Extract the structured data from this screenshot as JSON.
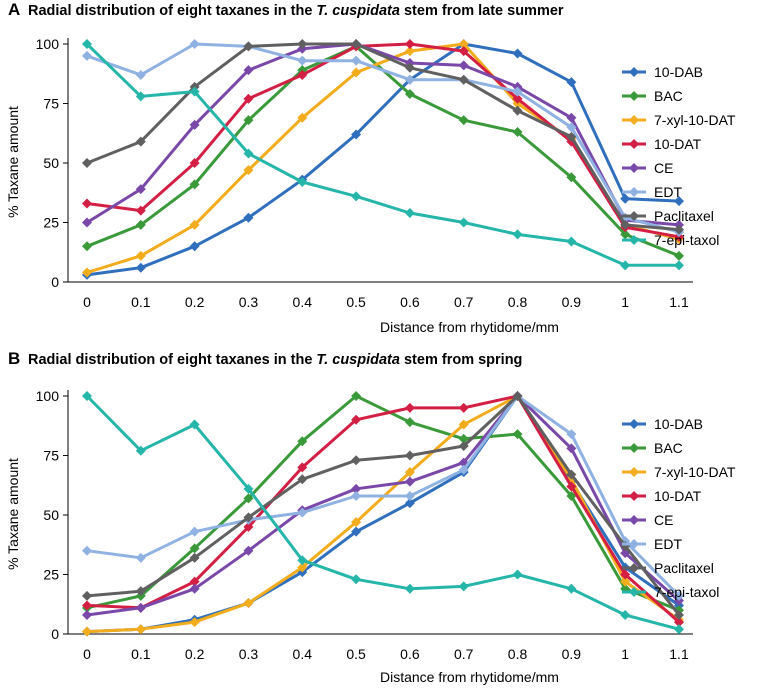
{
  "chart_data": [
    {
      "type": "line",
      "panel_label": "A",
      "title_parts": [
        "Radial distribution of eight taxanes in the ",
        "T. cuspidata",
        " stem from late summer"
      ],
      "xlabel": "Distance from rhytidome/mm",
      "ylabel": "% Taxane amount",
      "x": [
        0,
        0.1,
        0.2,
        0.3,
        0.4,
        0.5,
        0.6,
        0.7,
        0.8,
        0.9,
        1,
        1.1
      ],
      "x_ticks": [
        "0",
        "0.1",
        "0.2",
        "0.3",
        "0.4",
        "0.5",
        "0.6",
        "0.7",
        "0.8",
        "0.9",
        "1",
        "1.1"
      ],
      "ylim": [
        0,
        100
      ],
      "y_ticks": [
        "0",
        "25",
        "50",
        "75",
        "100"
      ],
      "legend_position": "right",
      "series": [
        {
          "name": "10-DAB",
          "color": "#2f6fbd",
          "values": [
            3,
            6,
            15,
            27,
            43,
            62,
            85,
            100,
            96,
            84,
            35,
            34
          ]
        },
        {
          "name": "BAC",
          "color": "#3a9a3a",
          "values": [
            15,
            24,
            41,
            68,
            89,
            99,
            79,
            68,
            63,
            44,
            20,
            11
          ]
        },
        {
          "name": "7-xyl-10-DAT",
          "color": "#f2ac1c",
          "values": [
            4,
            11,
            24,
            47,
            69,
            88,
            97,
            100,
            75,
            60,
            24,
            18
          ]
        },
        {
          "name": "10-DAT",
          "color": "#d41f45",
          "values": [
            33,
            30,
            50,
            77,
            87,
            99,
            100,
            97,
            77,
            59,
            23,
            19
          ]
        },
        {
          "name": "CE",
          "color": "#7a48a9",
          "values": [
            25,
            39,
            66,
            89,
            98,
            100,
            92,
            91,
            82,
            69,
            26,
            24
          ]
        },
        {
          "name": "EDT",
          "color": "#8fb2e3",
          "values": [
            95,
            87,
            100,
            99,
            93,
            93,
            85,
            85,
            80,
            65,
            27,
            21
          ]
        },
        {
          "name": "Paclitaxel",
          "color": "#606060",
          "values": [
            50,
            59,
            82,
            99,
            100,
            100,
            90,
            85,
            72,
            61,
            24,
            22
          ]
        },
        {
          "name": "7-epi-taxol",
          "color": "#26b5a9",
          "values": [
            100,
            78,
            80,
            54,
            42,
            36,
            29,
            25,
            20,
            17,
            7,
            7
          ]
        }
      ]
    },
    {
      "type": "line",
      "panel_label": "B",
      "title_parts": [
        "Radial distribution of eight taxanes in the ",
        "T. cuspidata",
        " stem from spring"
      ],
      "xlabel": "Distance from rhytidome/mm",
      "ylabel": "% Taxane amount",
      "x": [
        0,
        0.1,
        0.2,
        0.3,
        0.4,
        0.5,
        0.6,
        0.7,
        0.8,
        0.9,
        1,
        1.1
      ],
      "x_ticks": [
        "0",
        "0.1",
        "0.2",
        "0.3",
        "0.4",
        "0.5",
        "0.6",
        "0.7",
        "0.8",
        "0.9",
        "1",
        "1.1"
      ],
      "ylim": [
        0,
        100
      ],
      "y_ticks": [
        "0",
        "25",
        "50",
        "75",
        "100"
      ],
      "legend_position": "right",
      "series": [
        {
          "name": "10-DAB",
          "color": "#2f6fbd",
          "values": [
            1,
            2,
            6,
            13,
            26,
            43,
            55,
            68,
            100,
            64,
            28,
            12
          ]
        },
        {
          "name": "BAC",
          "color": "#3a9a3a",
          "values": [
            11,
            16,
            36,
            57,
            81,
            100,
            89,
            82,
            84,
            58,
            19,
            10
          ]
        },
        {
          "name": "7-xyl-10-DAT",
          "color": "#f2ac1c",
          "values": [
            1,
            2,
            5,
            13,
            28,
            47,
            68,
            88,
            100,
            65,
            22,
            6
          ]
        },
        {
          "name": "10-DAT",
          "color": "#d41f45",
          "values": [
            12,
            11,
            22,
            45,
            70,
            90,
            95,
            95,
            100,
            62,
            25,
            5
          ]
        },
        {
          "name": "CE",
          "color": "#7a48a9",
          "values": [
            8,
            11,
            19,
            35,
            52,
            61,
            64,
            72,
            100,
            78,
            34,
            14
          ]
        },
        {
          "name": "EDT",
          "color": "#8fb2e3",
          "values": [
            35,
            32,
            43,
            48,
            51,
            58,
            58,
            69,
            100,
            84,
            39,
            16
          ]
        },
        {
          "name": "Paclitaxel",
          "color": "#606060",
          "values": [
            16,
            18,
            32,
            49,
            65,
            73,
            75,
            79,
            100,
            67,
            37,
            8
          ]
        },
        {
          "name": "7-epi-taxol",
          "color": "#26b5a9",
          "values": [
            100,
            77,
            88,
            61,
            31,
            23,
            19,
            20,
            25,
            19,
            8,
            2
          ]
        }
      ]
    }
  ]
}
